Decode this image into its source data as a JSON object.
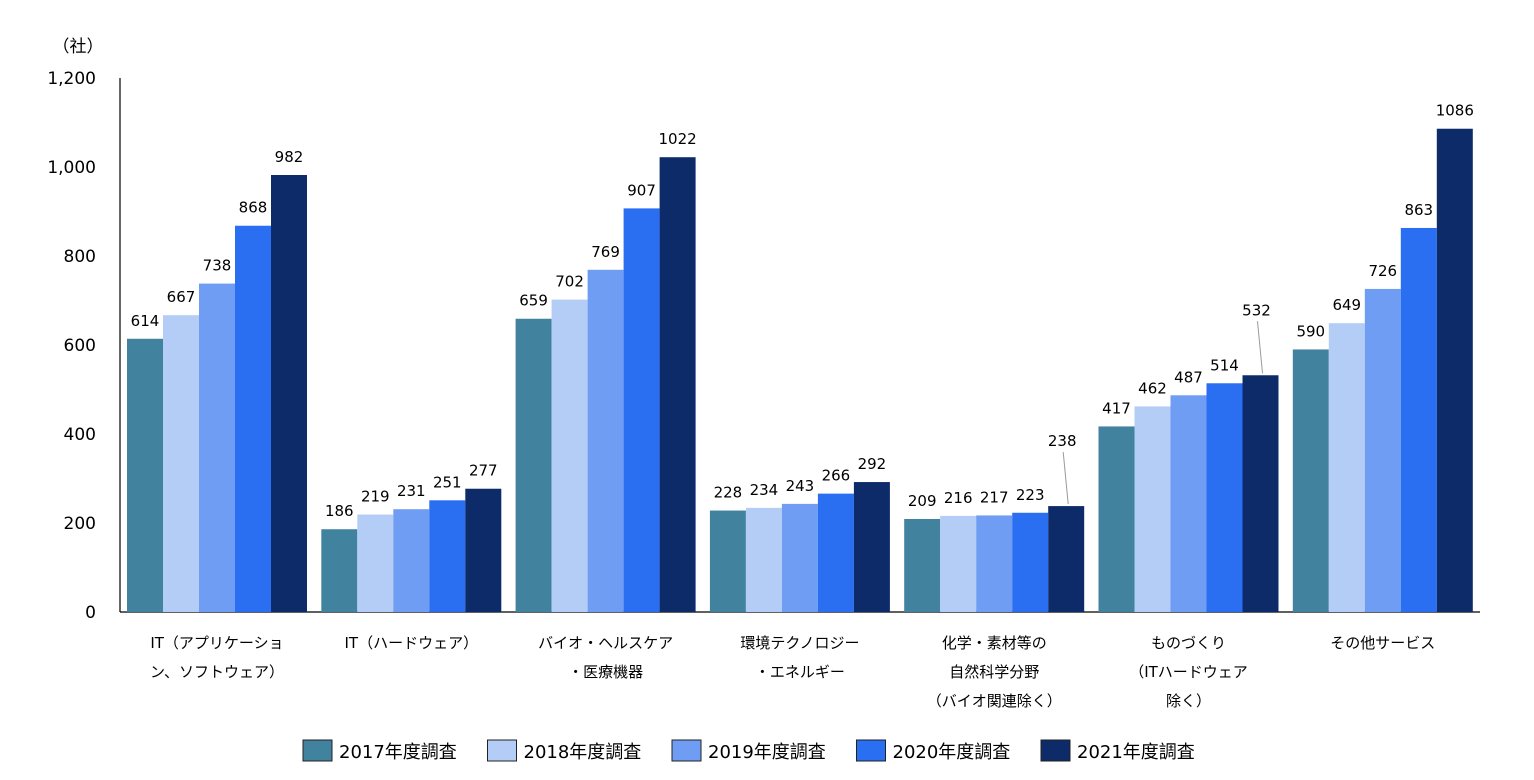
{
  "chart_data": {
    "type": "bar",
    "title": "",
    "ylabel": "（社）",
    "xlabel": "",
    "ylim": [
      0,
      1200
    ],
    "yticks": [
      0,
      200,
      400,
      600,
      800,
      1000,
      1200
    ],
    "ytick_labels": [
      "0",
      "200",
      "400",
      "600",
      "800",
      "1,000",
      "1,200"
    ],
    "grid": false,
    "legend_position": "bottom",
    "categories": [
      [
        "IT（アプリケーショ",
        "ン、ソフトウェア）"
      ],
      [
        "IT（ハードウェア）"
      ],
      [
        "バイオ・ヘルスケア",
        "・医療機器"
      ],
      [
        "環境テクノロジー",
        "・エネルギー"
      ],
      [
        "化学・素材等の",
        "自然科学分野",
        "（バイオ関連除く）"
      ],
      [
        "ものづくり",
        "（ITハードウェア",
        "除く）"
      ],
      [
        "その他サービス"
      ]
    ],
    "series": [
      {
        "name": "2017年度調査",
        "color": "#41829f",
        "values": [
          614,
          186,
          659,
          228,
          209,
          417,
          590
        ]
      },
      {
        "name": "2018年度調査",
        "color": "#b4cdf6",
        "values": [
          667,
          219,
          702,
          234,
          216,
          462,
          649
        ]
      },
      {
        "name": "2019年度調査",
        "color": "#6e9df3",
        "values": [
          738,
          231,
          769,
          243,
          217,
          487,
          726
        ]
      },
      {
        "name": "2020年度調査",
        "color": "#2a6ef2",
        "values": [
          868,
          251,
          907,
          266,
          223,
          514,
          863
        ]
      },
      {
        "name": "2021年度調査",
        "color": "#0d2b68",
        "values": [
          982,
          277,
          1022,
          292,
          238,
          532,
          1086
        ]
      }
    ],
    "callouts": [
      {
        "category_index": 4,
        "series_index": 4
      },
      {
        "category_index": 5,
        "series_index": 4
      }
    ]
  }
}
